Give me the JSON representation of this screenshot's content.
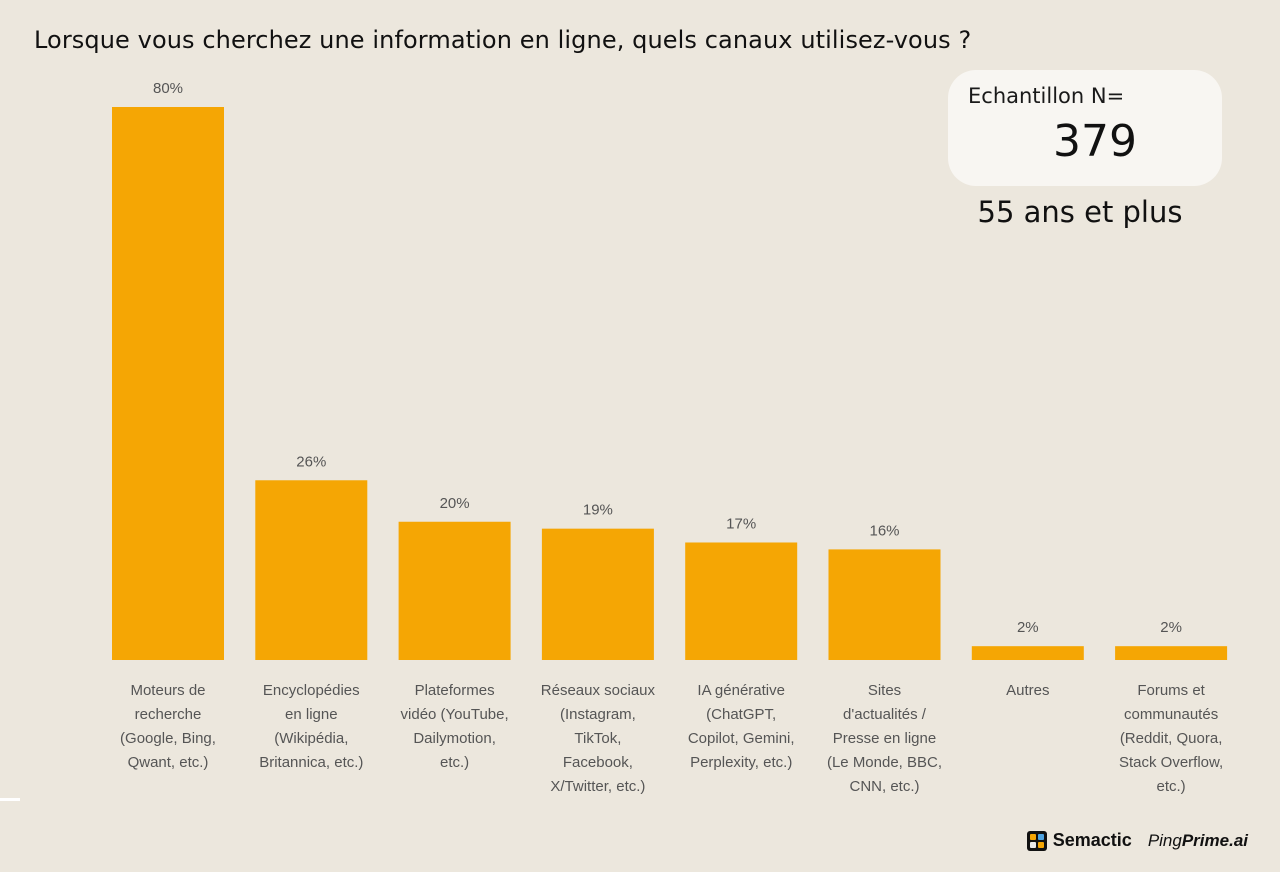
{
  "title": "Lorsque vous cherchez une information en ligne, quels canaux utilisez-vous ?",
  "sample": {
    "label": "Echantillon N=",
    "value": "379",
    "segment": "55 ans et plus"
  },
  "brands": {
    "semactic": "Semactic",
    "pingprime_regular": "Ping",
    "pingprime_bold": "Prime.ai"
  },
  "colors": {
    "bar": "#f5a604",
    "background": "#ece7dd"
  },
  "chart_data": {
    "type": "bar",
    "title": "Lorsque vous cherchez une information en ligne, quels canaux utilisez-vous ?",
    "xlabel": "",
    "ylabel": "",
    "ylim": [
      0,
      80
    ],
    "grid": false,
    "categories": [
      "Moteurs de recherche (Google, Bing, Qwant, etc.)",
      "Encyclopédies en ligne (Wikipédia, Britannica, etc.)",
      "Plateformes vidéo (YouTube, Dailymotion, etc.)",
      "Réseaux sociaux (Instagram, TikTok, Facebook, X/Twitter, etc.)",
      "IA générative (ChatGPT, Copilot, Gemini, Perplexity, etc.)",
      "Sites d'actualités / Presse en ligne (Le Monde, BBC, CNN, etc.)",
      "Autres",
      "Forums et communautés (Reddit, Quora, Stack Overflow, etc.)"
    ],
    "category_lines": [
      [
        "Moteurs de",
        "recherche",
        "(Google, Bing,",
        "Qwant, etc.)"
      ],
      [
        "Encyclopédies",
        "en ligne",
        "(Wikipédia,",
        "Britannica, etc.)"
      ],
      [
        "Plateformes",
        "vidéo (YouTube,",
        "Dailymotion,",
        "etc.)"
      ],
      [
        "Réseaux sociaux",
        "(Instagram,",
        "TikTok,",
        "Facebook,",
        "X/Twitter, etc.)"
      ],
      [
        "IA générative",
        "(ChatGPT,",
        "Copilot, Gemini,",
        "Perplexity, etc.)"
      ],
      [
        "Sites",
        "d'actualités /",
        "Presse en ligne",
        "(Le Monde, BBC,",
        "CNN, etc.)"
      ],
      [
        "Autres"
      ],
      [
        "Forums et",
        "communautés",
        "(Reddit, Quora,",
        "Stack Overflow,",
        "etc.)"
      ]
    ],
    "values": [
      80,
      26,
      20,
      19,
      17,
      16,
      2,
      2
    ],
    "value_labels": [
      "80%",
      "26%",
      "20%",
      "19%",
      "17%",
      "16%",
      "2%",
      "2%"
    ]
  }
}
